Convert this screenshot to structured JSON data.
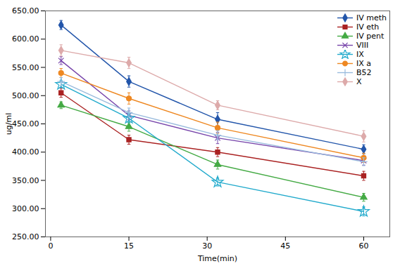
{
  "chart_data": {
    "type": "line",
    "xlabel": "Time(min)",
    "ylabel": "ug/ml",
    "x": [
      2,
      15,
      32,
      60
    ],
    "series": [
      {
        "name": "IV meth",
        "color": "#2255AA",
        "marker": "diamond",
        "values": [
          625,
          525,
          458,
          405
        ],
        "errors": [
          8,
          10,
          12,
          8
        ]
      },
      {
        "name": "IV eth",
        "color": "#AA2222",
        "marker": "square",
        "values": [
          505,
          422,
          400,
          358
        ],
        "errors": [
          8,
          8,
          8,
          8
        ]
      },
      {
        "name": "IV pent",
        "color": "#44AA44",
        "marker": "triangle",
        "values": [
          483,
          445,
          378,
          320
        ],
        "errors": [
          6,
          8,
          8,
          7
        ]
      },
      {
        "name": "VIII",
        "color": "#7744AA",
        "marker": "x",
        "values": [
          562,
          465,
          425,
          385
        ],
        "errors": [
          7,
          8,
          10,
          8
        ]
      },
      {
        "name": "IX",
        "color": "#22AACC",
        "marker": "star",
        "values": [
          520,
          460,
          347,
          295
        ],
        "errors": [
          6,
          8,
          7,
          8
        ]
      },
      {
        "name": "IX a",
        "color": "#EE8822",
        "marker": "circle",
        "values": [
          540,
          495,
          443,
          390
        ],
        "errors": [
          8,
          10,
          10,
          8
        ]
      },
      {
        "name": "B52",
        "color": "#99BBDD",
        "marker": "plus",
        "values": [
          525,
          470,
          430,
          383
        ],
        "errors": [
          7,
          8,
          8,
          7
        ]
      },
      {
        "name": "X",
        "color": "#DDAAAA",
        "marker": "diamond",
        "values": [
          580,
          558,
          483,
          428
        ],
        "errors": [
          10,
          10,
          8,
          10
        ]
      }
    ],
    "xlim": [
      -1,
      65
    ],
    "ylim": [
      250,
      650
    ],
    "xticks": [
      0,
      15,
      30,
      45,
      60
    ],
    "yticks": [
      {
        "value": 250,
        "label": "250.00"
      },
      {
        "value": 300,
        "label": "300.00"
      },
      {
        "value": 350,
        "label": "350.00"
      },
      {
        "value": 400,
        "label": "400.00"
      },
      {
        "value": 450,
        "label": "450.00"
      },
      {
        "value": 500,
        "label": "500.00"
      },
      {
        "value": 550,
        "label": "550.00"
      },
      {
        "value": 600,
        "label": "600.00"
      },
      {
        "value": 650,
        "label": "650.00"
      }
    ],
    "grid": false,
    "legend": "upper right"
  }
}
